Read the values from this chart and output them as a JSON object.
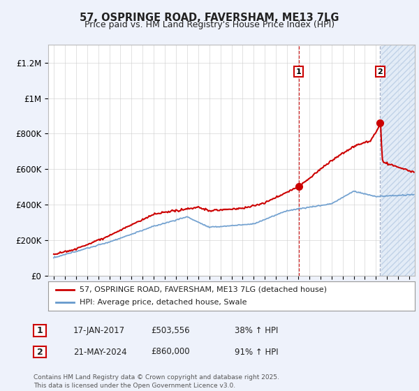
{
  "title1": "57, OSPRINGE ROAD, FAVERSHAM, ME13 7LG",
  "title2": "Price paid vs. HM Land Registry's House Price Index (HPI)",
  "ylabel_ticks": [
    "£0",
    "£200K",
    "£400K",
    "£600K",
    "£800K",
    "£1M",
    "£1.2M"
  ],
  "ytick_vals": [
    0,
    200000,
    400000,
    600000,
    800000,
    1000000,
    1200000
  ],
  "ylim": [
    0,
    1300000
  ],
  "xlim_start": 1994.5,
  "xlim_end": 2027.5,
  "sale1_x": 2017.04,
  "sale1_y": 503556,
  "sale1_label": "1",
  "sale2_x": 2024.38,
  "sale2_y": 860000,
  "sale2_label": "2",
  "red_line_color": "#cc0000",
  "blue_line_color": "#6699cc",
  "bg_color": "#eef2fb",
  "plot_bg_color": "#ffffff",
  "grid_color": "#cccccc",
  "hatch_bg_color": "#dce8f5",
  "legend1_text": "57, OSPRINGE ROAD, FAVERSHAM, ME13 7LG (detached house)",
  "legend2_text": "HPI: Average price, detached house, Swale",
  "table_row1": [
    "1",
    "17-JAN-2017",
    "£503,556",
    "38% ↑ HPI"
  ],
  "table_row2": [
    "2",
    "21-MAY-2024",
    "£860,000",
    "91% ↑ HPI"
  ],
  "footer": "Contains HM Land Registry data © Crown copyright and database right 2025.\nThis data is licensed under the Open Government Licence v3.0."
}
